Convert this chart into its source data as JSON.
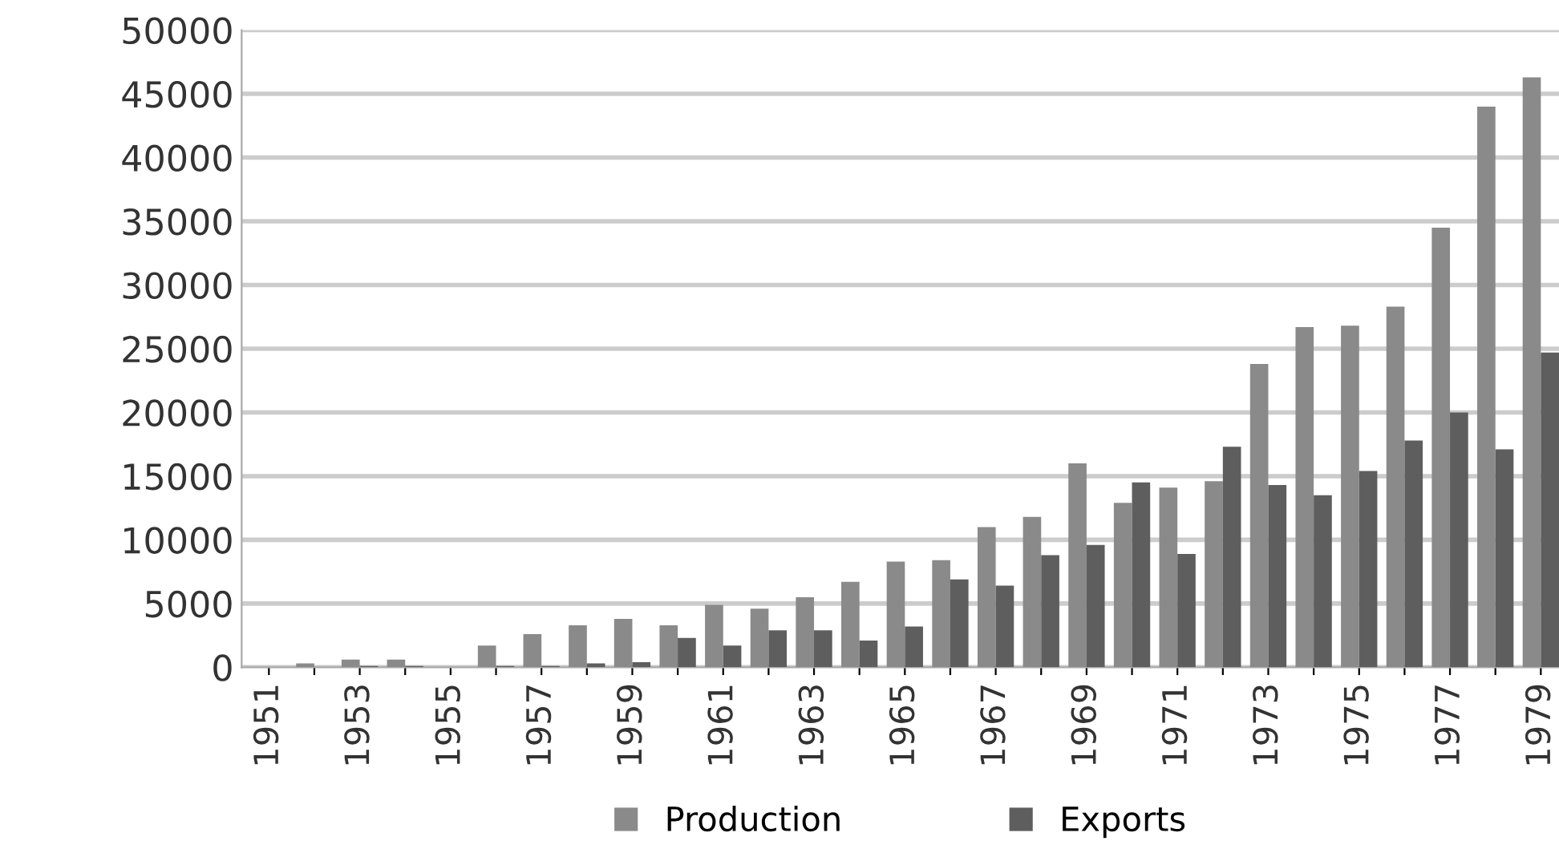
{
  "chart_data": {
    "type": "bar",
    "categories": [
      "1951",
      null,
      "1953",
      null,
      "1955",
      null,
      "1957",
      null,
      "1959",
      null,
      "1961",
      null,
      "1963",
      null,
      "1965",
      null,
      "1967",
      null,
      "1969",
      null,
      "1971",
      null,
      "1973",
      null,
      "1975",
      null,
      "1977",
      null,
      "1979"
    ],
    "series": [
      {
        "name": "Production",
        "color": "#8a8a8a",
        "values": [
          0,
          300,
          600,
          600,
          0,
          1700,
          2600,
          3300,
          3800,
          3300,
          4900,
          4600,
          5500,
          6700,
          8300,
          8400,
          11000,
          11800,
          16000,
          12900,
          14100,
          14600,
          23800,
          26700,
          26800,
          28300,
          34500,
          44000,
          46300
        ]
      },
      {
        "name": "Exports",
        "color": "#5e5e5e",
        "values": [
          0,
          0,
          100,
          100,
          0,
          100,
          100,
          300,
          400,
          2300,
          1700,
          2900,
          2900,
          2100,
          3200,
          6900,
          6400,
          8800,
          9600,
          14500,
          8900,
          17300,
          14300,
          13500,
          15400,
          17800,
          20000,
          17100,
          24700
        ]
      }
    ],
    "ylim": [
      0,
      50000
    ],
    "yticks": [
      0,
      5000,
      10000,
      15000,
      20000,
      25000,
      30000,
      35000,
      40000,
      45000,
      50000
    ],
    "grid": "y",
    "legend": "bottom"
  }
}
